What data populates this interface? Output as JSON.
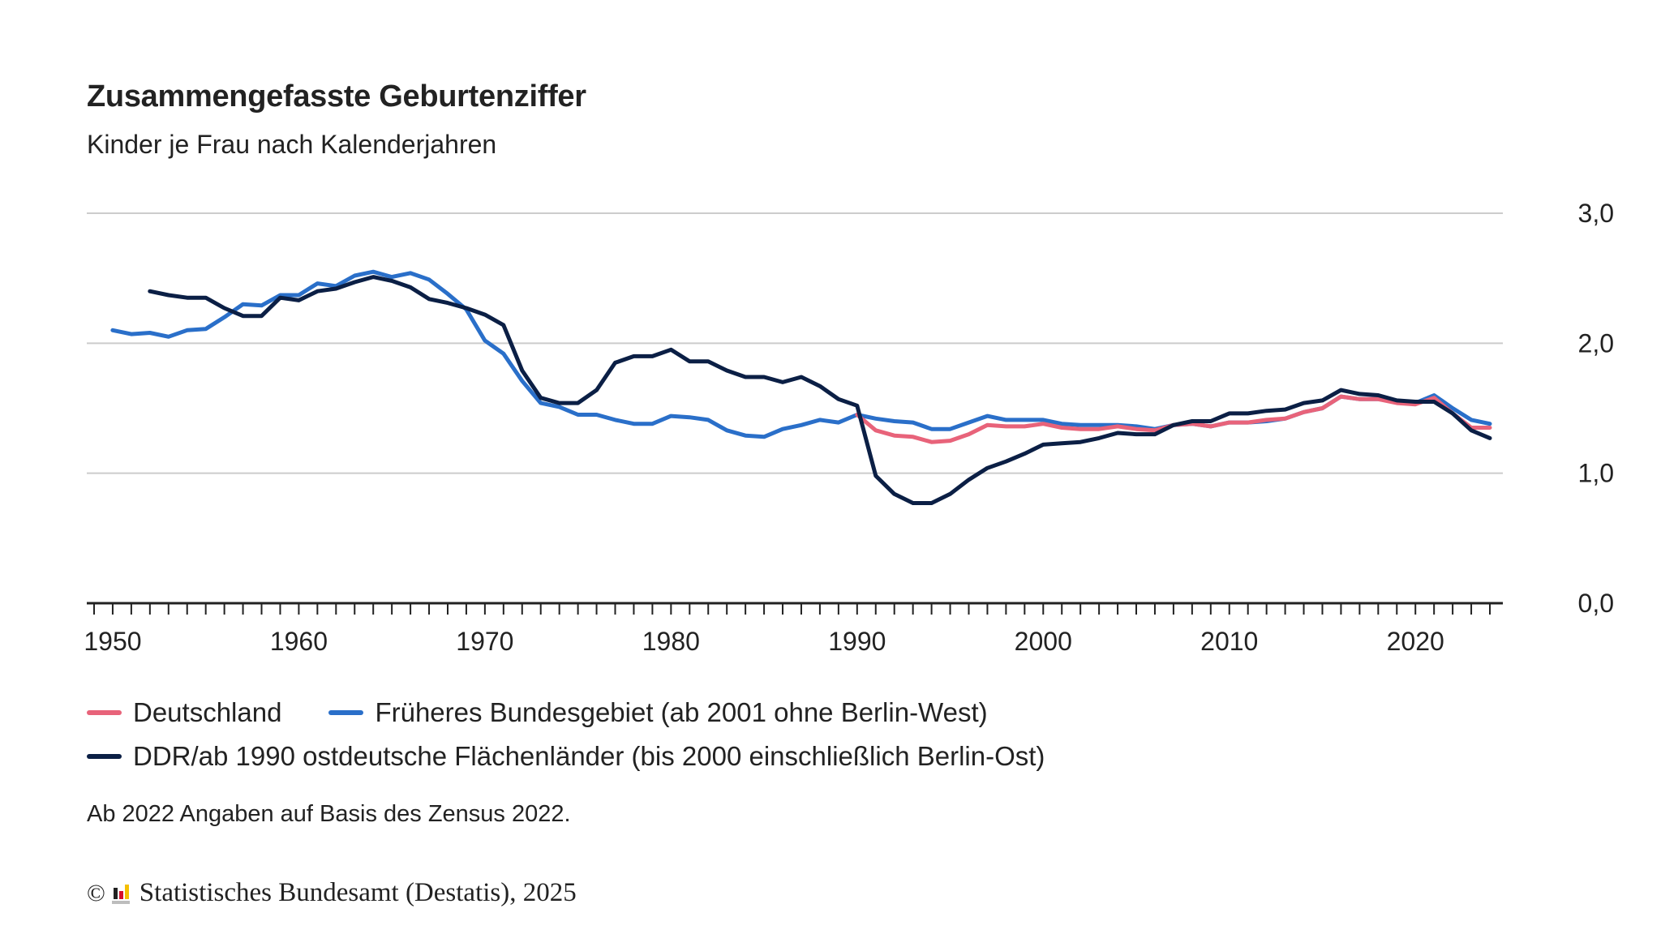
{
  "header": {
    "title": "Zusammengefasste Geburtenziffer",
    "subtitle": "Kinder je Frau nach Kalenderjahren"
  },
  "legend": [
    {
      "label": "Deutschland",
      "color": "#e8637a"
    },
    {
      "label": "Früheres Bundesgebiet (ab 2001 ohne Berlin-West)",
      "color": "#2a6fc9"
    },
    {
      "label": "DDR/ab 1990 ostdeutsche Flächenländer (bis 2000 einschließlich Berlin-Ost)",
      "color": "#0b1f45"
    }
  ],
  "note": "Ab 2022 Angaben auf Basis des Zensus 2022.",
  "source": {
    "copyright_symbol": "©",
    "text": "Statistisches Bundesamt (Destatis), 2025",
    "logo_icon": "destatis-logo-icon"
  },
  "chart_data": {
    "type": "line",
    "title": "Zusammengefasste Geburtenziffer",
    "subtitle": "Kinder je Frau nach Kalenderjahren",
    "xlabel": "",
    "ylabel": "",
    "xlim": [
      1949,
      2024
    ],
    "ylim": [
      0,
      3
    ],
    "x_ticks": [
      1950,
      1960,
      1970,
      1980,
      1990,
      2000,
      2010,
      2020
    ],
    "y_ticks": [
      "0,0",
      "1,0",
      "2,0",
      "3,0"
    ],
    "y_tick_values": [
      0,
      1,
      2,
      3
    ],
    "y_axis_side": "right",
    "grid": true,
    "legend_position": "bottom",
    "series": [
      {
        "name": "Deutschland",
        "color": "#e8637a",
        "start_year": 1990,
        "values": [
          1.45,
          1.33,
          1.29,
          1.28,
          1.24,
          1.25,
          1.3,
          1.37,
          1.36,
          1.36,
          1.38,
          1.35,
          1.34,
          1.34,
          1.36,
          1.34,
          1.33,
          1.37,
          1.38,
          1.36,
          1.39,
          1.39,
          1.41,
          1.42,
          1.47,
          1.5,
          1.59,
          1.57,
          1.57,
          1.54,
          1.53,
          1.58,
          1.46,
          1.35,
          1.35
        ]
      },
      {
        "name": "Früheres Bundesgebiet (ab 2001 ohne Berlin-West)",
        "color": "#2a6fc9",
        "start_year": 1950,
        "values": [
          2.1,
          2.07,
          2.08,
          2.05,
          2.1,
          2.11,
          2.2,
          2.3,
          2.29,
          2.37,
          2.37,
          2.46,
          2.44,
          2.52,
          2.55,
          2.51,
          2.54,
          2.49,
          2.38,
          2.26,
          2.02,
          1.92,
          1.71,
          1.54,
          1.51,
          1.45,
          1.45,
          1.41,
          1.38,
          1.38,
          1.44,
          1.43,
          1.41,
          1.33,
          1.29,
          1.28,
          1.34,
          1.37,
          1.41,
          1.39,
          1.45,
          1.42,
          1.4,
          1.39,
          1.34,
          1.34,
          1.39,
          1.44,
          1.41,
          1.41,
          1.41,
          1.38,
          1.37,
          1.37,
          1.37,
          1.36,
          1.34,
          1.37,
          1.38,
          1.36,
          1.39,
          1.39,
          1.4,
          1.42,
          1.47,
          1.5,
          1.59,
          1.57,
          1.57,
          1.55,
          1.54,
          1.6,
          1.5,
          1.41,
          1.38
        ]
      },
      {
        "name": "DDR/ab 1990 ostdeutsche Flächenländer (bis 2000 einschließlich Berlin-Ost)",
        "color": "#0b1f45",
        "start_year": 1952,
        "values": [
          2.4,
          2.37,
          2.35,
          2.35,
          2.27,
          2.21,
          2.21,
          2.35,
          2.33,
          2.4,
          2.42,
          2.47,
          2.51,
          2.48,
          2.43,
          2.34,
          2.31,
          2.27,
          2.22,
          2.14,
          1.79,
          1.58,
          1.54,
          1.54,
          1.64,
          1.85,
          1.9,
          1.9,
          1.95,
          1.86,
          1.86,
          1.79,
          1.74,
          1.74,
          1.7,
          1.74,
          1.67,
          1.57,
          1.52,
          0.98,
          0.84,
          0.77,
          0.77,
          0.84,
          0.95,
          1.04,
          1.09,
          1.15,
          1.22,
          1.23,
          1.24,
          1.27,
          1.31,
          1.3,
          1.3,
          1.37,
          1.4,
          1.4,
          1.46,
          1.46,
          1.48,
          1.49,
          1.54,
          1.56,
          1.64,
          1.61,
          1.6,
          1.56,
          1.55,
          1.55,
          1.46,
          1.33,
          1.27
        ]
      }
    ]
  }
}
